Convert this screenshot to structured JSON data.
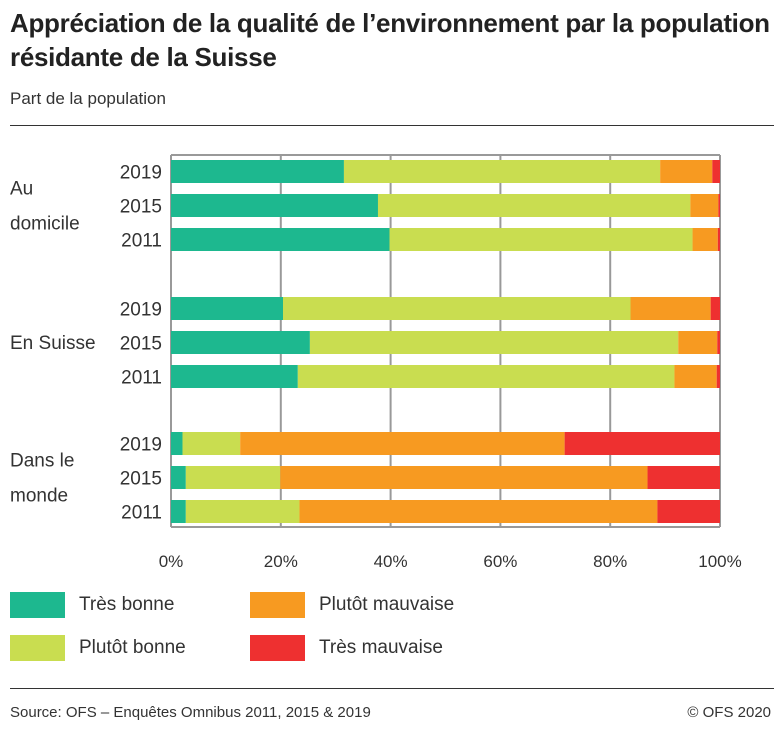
{
  "title": "Appréciation de la qualité de l’environnement par la population résidante de la Suisse",
  "subtitle": "Part de la population",
  "source": "Source: OFS – Enquêtes Omnibus 2011, 2015 & 2019",
  "copyright": "© OFS 2020",
  "chart_data": {
    "type": "bar",
    "orientation": "horizontal",
    "stacked": true,
    "groups": [
      {
        "label": "Au domicile",
        "label_lines": [
          "Au",
          "domicile"
        ],
        "categories": [
          "2019",
          "2015",
          "2011"
        ]
      },
      {
        "label": "En Suisse",
        "label_lines": [
          "En Suisse"
        ],
        "categories": [
          "2019",
          "2015",
          "2011"
        ]
      },
      {
        "label": "Dans le monde",
        "label_lines": [
          "Dans le",
          "monde"
        ],
        "categories": [
          "2019",
          "2015",
          "2011"
        ]
      }
    ],
    "series": [
      {
        "name": "Très bonne",
        "color": "#1db88f",
        "values": [
          [
            31.5,
            37.7,
            39.8
          ],
          [
            20.4,
            25.3,
            23.1
          ],
          [
            2.1,
            2.7,
            2.7
          ]
        ]
      },
      {
        "name": "Plutôt bonne",
        "color": "#c9dd50",
        "values": [
          [
            57.6,
            56.9,
            55.2
          ],
          [
            63.3,
            67.1,
            68.6
          ],
          [
            10.5,
            17.2,
            20.7
          ]
        ]
      },
      {
        "name": "Plutôt mauvaise",
        "color": "#f79a21",
        "values": [
          [
            9.5,
            5.1,
            4.6
          ],
          [
            14.6,
            7.1,
            7.7
          ],
          [
            59.1,
            66.9,
            65.2
          ]
        ]
      },
      {
        "name": "Très mauvaise",
        "color": "#ee3030",
        "values": [
          [
            1.4,
            0.3,
            0.4
          ],
          [
            1.7,
            0.5,
            0.6
          ],
          [
            28.3,
            13.2,
            11.4
          ]
        ]
      }
    ],
    "xlim": [
      0,
      100
    ],
    "xticks": [
      "0%",
      "20%",
      "40%",
      "60%",
      "80%",
      "100%"
    ],
    "grid": true,
    "legend_position": "bottom"
  }
}
